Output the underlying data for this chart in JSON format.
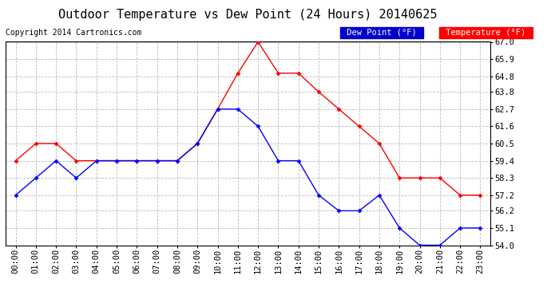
{
  "title": "Outdoor Temperature vs Dew Point (24 Hours) 20140625",
  "copyright": "Copyright 2014 Cartronics.com",
  "legend_dew": "Dew Point (°F)",
  "legend_temp": "Temperature (°F)",
  "hours": [
    "00:00",
    "01:00",
    "02:00",
    "03:00",
    "04:00",
    "05:00",
    "06:00",
    "07:00",
    "08:00",
    "09:00",
    "10:00",
    "11:00",
    "12:00",
    "13:00",
    "14:00",
    "15:00",
    "16:00",
    "17:00",
    "18:00",
    "19:00",
    "20:00",
    "21:00",
    "22:00",
    "23:00"
  ],
  "temperature": [
    59.4,
    60.5,
    60.5,
    59.4,
    59.4,
    59.4,
    59.4,
    59.4,
    59.4,
    60.5,
    62.7,
    65.0,
    67.0,
    65.0,
    65.0,
    63.8,
    62.7,
    61.6,
    60.5,
    58.3,
    58.3,
    58.3,
    57.2,
    57.2
  ],
  "dew_point": [
    57.2,
    58.3,
    59.4,
    58.3,
    59.4,
    59.4,
    59.4,
    59.4,
    59.4,
    60.5,
    62.7,
    62.7,
    61.6,
    59.4,
    59.4,
    57.2,
    56.2,
    56.2,
    57.2,
    55.1,
    54.0,
    54.0,
    55.1,
    55.1
  ],
  "ylim_min": 54.0,
  "ylim_max": 67.0,
  "yticks": [
    54.0,
    55.1,
    56.2,
    57.2,
    58.3,
    59.4,
    60.5,
    61.6,
    62.7,
    63.8,
    64.8,
    65.9,
    67.0
  ],
  "temp_color": "#ff0000",
  "dew_color": "#0000ff",
  "dew_legend_bg": "#0000cc",
  "temp_legend_bg": "#cc0000",
  "bg_color": "#ffffff",
  "grid_color": "#bbbbbb",
  "title_fontsize": 11,
  "copyright_fontsize": 7,
  "tick_fontsize": 7.5
}
